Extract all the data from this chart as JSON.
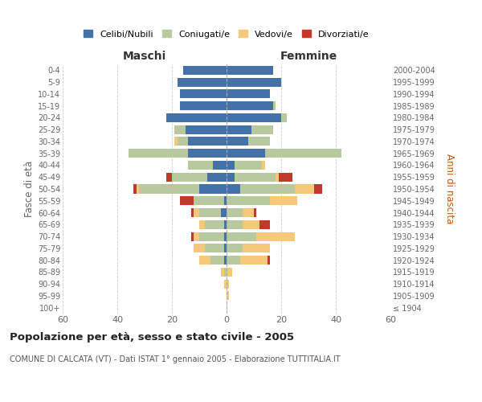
{
  "age_groups": [
    "100+",
    "95-99",
    "90-94",
    "85-89",
    "80-84",
    "75-79",
    "70-74",
    "65-69",
    "60-64",
    "55-59",
    "50-54",
    "45-49",
    "40-44",
    "35-39",
    "30-34",
    "25-29",
    "20-24",
    "15-19",
    "10-14",
    "5-9",
    "0-4"
  ],
  "birth_years": [
    "≤ 1904",
    "1905-1909",
    "1910-1914",
    "1915-1919",
    "1920-1924",
    "1925-1929",
    "1930-1934",
    "1935-1939",
    "1940-1944",
    "1945-1949",
    "1950-1954",
    "1955-1959",
    "1960-1964",
    "1965-1969",
    "1970-1974",
    "1975-1979",
    "1980-1984",
    "1985-1989",
    "1990-1994",
    "1995-1999",
    "2000-2004"
  ],
  "colors": {
    "celibi": "#4472a8",
    "coniugati": "#b8c9a0",
    "vedovi": "#f5c87a",
    "divorziati": "#c0392b"
  },
  "maschi": {
    "celibi": [
      0,
      0,
      0,
      0,
      1,
      1,
      1,
      1,
      2,
      1,
      10,
      7,
      5,
      14,
      14,
      15,
      22,
      17,
      17,
      18,
      16
    ],
    "coniugati": [
      0,
      0,
      0,
      1,
      5,
      7,
      9,
      7,
      8,
      11,
      22,
      13,
      9,
      22,
      4,
      4,
      0,
      0,
      0,
      0,
      0
    ],
    "vedovi": [
      0,
      0,
      1,
      1,
      4,
      4,
      2,
      2,
      2,
      0,
      1,
      0,
      0,
      0,
      1,
      0,
      0,
      0,
      0,
      0,
      0
    ],
    "divorziati": [
      0,
      0,
      0,
      0,
      0,
      0,
      1,
      0,
      1,
      5,
      1,
      2,
      0,
      0,
      0,
      0,
      0,
      0,
      0,
      0,
      0
    ]
  },
  "femmine": {
    "celibi": [
      0,
      0,
      0,
      0,
      0,
      0,
      0,
      0,
      0,
      0,
      5,
      3,
      3,
      14,
      8,
      9,
      20,
      17,
      16,
      20,
      17
    ],
    "coniugati": [
      0,
      0,
      0,
      0,
      5,
      6,
      11,
      6,
      6,
      16,
      20,
      15,
      10,
      28,
      8,
      8,
      2,
      1,
      0,
      0,
      0
    ],
    "vedovi": [
      0,
      1,
      1,
      2,
      10,
      10,
      14,
      6,
      4,
      10,
      7,
      1,
      1,
      0,
      0,
      0,
      0,
      0,
      0,
      0,
      0
    ],
    "divorziati": [
      0,
      0,
      0,
      0,
      1,
      0,
      0,
      4,
      1,
      0,
      3,
      5,
      0,
      0,
      0,
      0,
      0,
      0,
      0,
      0,
      0
    ]
  },
  "title": "Popolazione per età, sesso e stato civile - 2005",
  "subtitle": "COMUNE DI CALCATA (VT) - Dati ISTAT 1° gennaio 2005 - Elaborazione TUTTITALIA.IT",
  "xlabel_left": "Maschi",
  "xlabel_right": "Femmine",
  "ylabel_left": "Fasce di età",
  "ylabel_right": "Anni di nascita",
  "xlim": 60,
  "legend_labels": [
    "Celibi/Nubili",
    "Coniugati/e",
    "Vedovi/e",
    "Divorziati/e"
  ],
  "bg_color": "#ffffff"
}
